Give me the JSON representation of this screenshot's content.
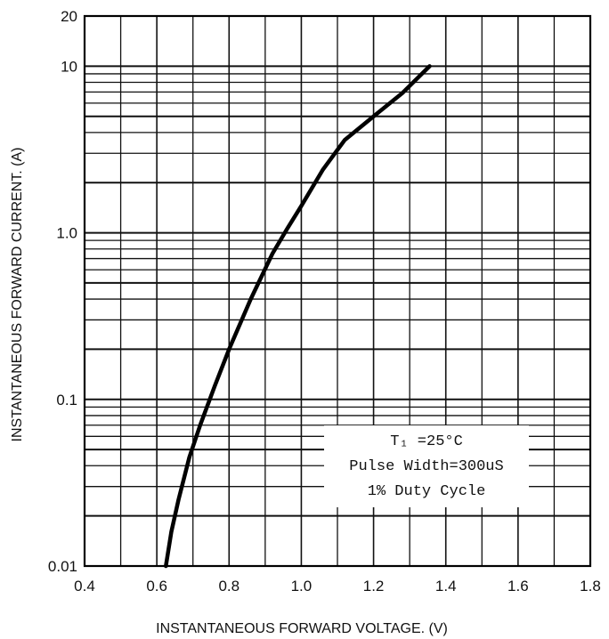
{
  "chart_data": {
    "type": "line",
    "title": "",
    "xlabel": "INSTANTANEOUS FORWARD VOLTAGE. (V)",
    "ylabel": "INSTANTANEOUS FORWARD CURRENT. (A)",
    "xlim": [
      0.4,
      1.8
    ],
    "ylim": [
      0.01,
      20
    ],
    "yscale": "log",
    "grid": true,
    "x_ticks": [
      {
        "value": 0.4,
        "label": "0.4"
      },
      {
        "value": 0.6,
        "label": "0.6"
      },
      {
        "value": 0.8,
        "label": "0.8"
      },
      {
        "value": 1.0,
        "label": "1.0"
      },
      {
        "value": 1.2,
        "label": "1.2"
      },
      {
        "value": 1.4,
        "label": "1.4"
      },
      {
        "value": 1.6,
        "label": "1.6"
      },
      {
        "value": 1.8,
        "label": "1.8"
      }
    ],
    "y_ticks": [
      {
        "value": 0.01,
        "label": "0.01"
      },
      {
        "value": 0.1,
        "label": "0.1"
      },
      {
        "value": 1.0,
        "label": "1.0"
      },
      {
        "value": 10,
        "label": "10"
      },
      {
        "value": 20,
        "label": "20"
      }
    ],
    "series": [
      {
        "x": [
          0.625,
          0.64,
          0.66,
          0.69,
          0.72,
          0.76,
          0.8,
          0.86,
          0.92,
          0.96,
          1.0,
          1.06,
          1.12,
          1.2,
          1.28,
          1.355
        ],
        "y": [
          0.01,
          0.016,
          0.025,
          0.045,
          0.07,
          0.12,
          0.2,
          0.4,
          0.75,
          1.05,
          1.45,
          2.4,
          3.6,
          5.0,
          6.9,
          10.0
        ]
      }
    ],
    "annotation_lines": [
      "T₁ =25°C",
      "Pulse Width=300uS",
      "1% Duty Cycle"
    ]
  }
}
